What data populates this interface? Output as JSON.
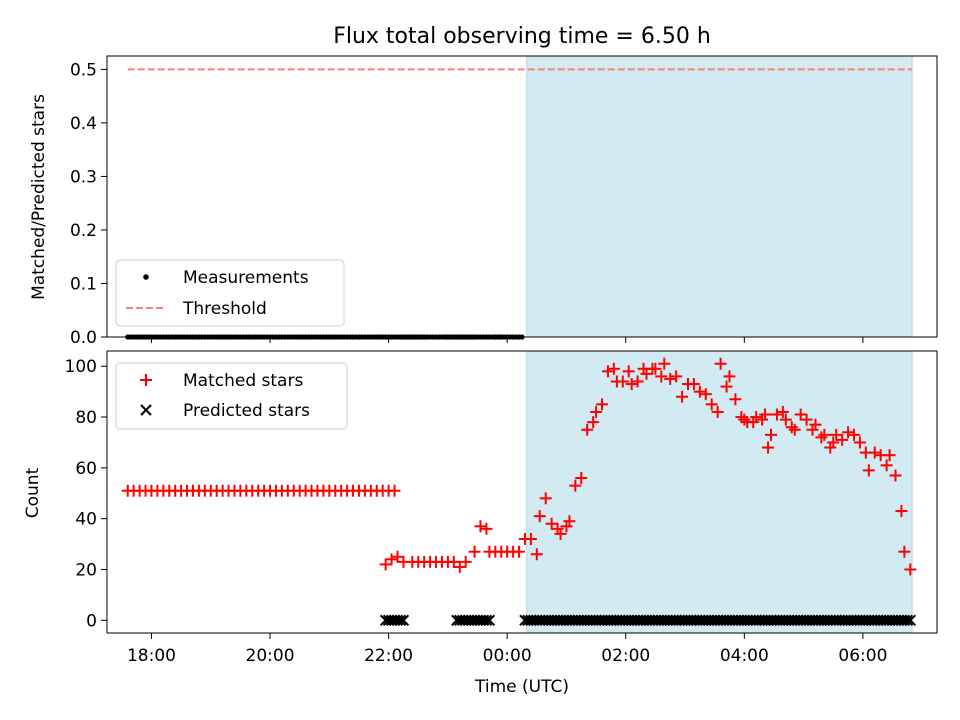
{
  "chart_data": {
    "type": "scatter",
    "title": "Flux total observing time = 6.50 h",
    "colors": {
      "matched": "#ff0000",
      "predicted": "#000000",
      "threshold": "#ff7f7f",
      "shade": "#add8e6",
      "measurement": "#000000"
    },
    "x_axis": {
      "label": "Time (UTC)",
      "unit": "hours since 00:00 UTC",
      "range": [
        -6.75,
        7.25
      ],
      "ticks": [
        {
          "value": -6,
          "label": "18:00"
        },
        {
          "value": -4,
          "label": "20:00"
        },
        {
          "value": -2,
          "label": "22:00"
        },
        {
          "value": 0,
          "label": "00:00"
        },
        {
          "value": 2,
          "label": "02:00"
        },
        {
          "value": 4,
          "label": "04:00"
        },
        {
          "value": 6,
          "label": "06:00"
        }
      ]
    },
    "shaded_interval": [
      0.33,
      6.83
    ],
    "top_panel": {
      "ylabel": "Matched/Predicted stars",
      "ylim": [
        0,
        0.525
      ],
      "yticks": [
        "0.0",
        "0.1",
        "0.2",
        "0.3",
        "0.4",
        "0.5"
      ],
      "legend": [
        "Measurements",
        "Threshold"
      ],
      "threshold": {
        "value": 0.5,
        "x_range": [
          -6.4,
          6.83
        ]
      },
      "measurement_segments": [
        [
          -6.4,
          -0.1
        ],
        [
          -1.8,
          -1.4
        ],
        [
          -1.05,
          -0.55
        ],
        [
          -0.2,
          0.25
        ]
      ]
    },
    "bottom_panel": {
      "ylabel": "Count",
      "ylim": [
        -5,
        106
      ],
      "yticks": [
        "0",
        "20",
        "40",
        "60",
        "80",
        "100"
      ],
      "legend": [
        "Matched stars",
        "Predicted stars"
      ],
      "matched_segments": [
        {
          "from": -6.4,
          "to": -1.9,
          "value": 51
        },
        {
          "from": -1.5,
          "to": -0.9,
          "value": 23
        },
        {
          "from": -0.3,
          "to": 0.2,
          "value": 27
        }
      ],
      "matched_points": [
        [
          -2.05,
          22
        ],
        [
          -1.95,
          24
        ],
        [
          -1.85,
          25
        ],
        [
          -1.75,
          23
        ],
        [
          -1.6,
          23
        ],
        [
          -0.8,
          21
        ],
        [
          -0.7,
          23
        ],
        [
          -0.55,
          27
        ],
        [
          -0.45,
          37
        ],
        [
          -0.35,
          36
        ],
        [
          0.3,
          32
        ],
        [
          0.4,
          32
        ],
        [
          0.5,
          26
        ],
        [
          0.55,
          41
        ],
        [
          0.65,
          48
        ],
        [
          0.75,
          38
        ],
        [
          0.85,
          36
        ],
        [
          0.9,
          34
        ],
        [
          1.0,
          37
        ],
        [
          1.05,
          39
        ],
        [
          1.15,
          53
        ],
        [
          1.25,
          56
        ],
        [
          1.35,
          75
        ],
        [
          1.45,
          78
        ],
        [
          1.5,
          82
        ],
        [
          1.6,
          85
        ],
        [
          1.7,
          98
        ],
        [
          1.8,
          99
        ],
        [
          1.85,
          94
        ],
        [
          1.95,
          94
        ],
        [
          2.05,
          98
        ],
        [
          2.1,
          93
        ],
        [
          2.2,
          94
        ],
        [
          2.3,
          99
        ],
        [
          2.35,
          97
        ],
        [
          2.45,
          99
        ],
        [
          2.5,
          99
        ],
        [
          2.6,
          96
        ],
        [
          2.65,
          101
        ],
        [
          2.75,
          95
        ],
        [
          2.85,
          96
        ],
        [
          2.95,
          88
        ],
        [
          3.05,
          93
        ],
        [
          3.15,
          93
        ],
        [
          3.25,
          90
        ],
        [
          3.35,
          89
        ],
        [
          3.45,
          85
        ],
        [
          3.55,
          82
        ],
        [
          3.6,
          101
        ],
        [
          3.7,
          92
        ],
        [
          3.75,
          96
        ],
        [
          3.85,
          87
        ],
        [
          3.95,
          80
        ],
        [
          4.0,
          79
        ],
        [
          4.05,
          78
        ],
        [
          4.15,
          78
        ],
        [
          4.2,
          80
        ],
        [
          4.3,
          79
        ],
        [
          4.35,
          81
        ],
        [
          4.4,
          68
        ],
        [
          4.45,
          73
        ],
        [
          4.55,
          81
        ],
        [
          4.65,
          82
        ],
        [
          4.7,
          79
        ],
        [
          4.8,
          76
        ],
        [
          4.85,
          75
        ],
        [
          4.95,
          81
        ],
        [
          5.05,
          79
        ],
        [
          5.15,
          75
        ],
        [
          5.2,
          77
        ],
        [
          5.3,
          72
        ],
        [
          5.35,
          73
        ],
        [
          5.45,
          68
        ],
        [
          5.5,
          70
        ],
        [
          5.55,
          73
        ],
        [
          5.65,
          71
        ],
        [
          5.75,
          74
        ],
        [
          5.85,
          73
        ],
        [
          5.95,
          70
        ],
        [
          6.05,
          66
        ],
        [
          6.1,
          59
        ],
        [
          6.2,
          66
        ],
        [
          6.3,
          65
        ],
        [
          6.4,
          61
        ],
        [
          6.45,
          65
        ],
        [
          6.55,
          57
        ],
        [
          6.65,
          43
        ],
        [
          6.7,
          27
        ],
        [
          6.8,
          20
        ]
      ],
      "predicted_segments": [
        [
          -2.05,
          -1.75
        ],
        [
          -0.85,
          -0.3
        ],
        [
          0.3,
          6.83
        ]
      ],
      "predicted_value": 0
    }
  }
}
